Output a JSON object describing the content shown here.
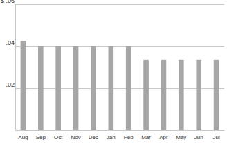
{
  "chart_data": {
    "type": "bar",
    "categories": [
      "Aug",
      "Sep",
      "Oct",
      "Nov",
      "Dec",
      "Jan",
      "Feb",
      "Mar",
      "Apr",
      "May",
      "Jun",
      "Jul"
    ],
    "values": [
      0.0425,
      0.04,
      0.04,
      0.04,
      0.04,
      0.04,
      0.04,
      0.0335,
      0.0335,
      0.0335,
      0.0335,
      0.0335
    ],
    "color": "#a6a6a6",
    "ylim": [
      0,
      0.06
    ],
    "yticks": [
      {
        "value": 0.02,
        "label": ".02"
      },
      {
        "value": 0.04,
        "label": ".04"
      },
      {
        "value": 0.06,
        "label": "$ .06"
      }
    ],
    "grid": true
  }
}
